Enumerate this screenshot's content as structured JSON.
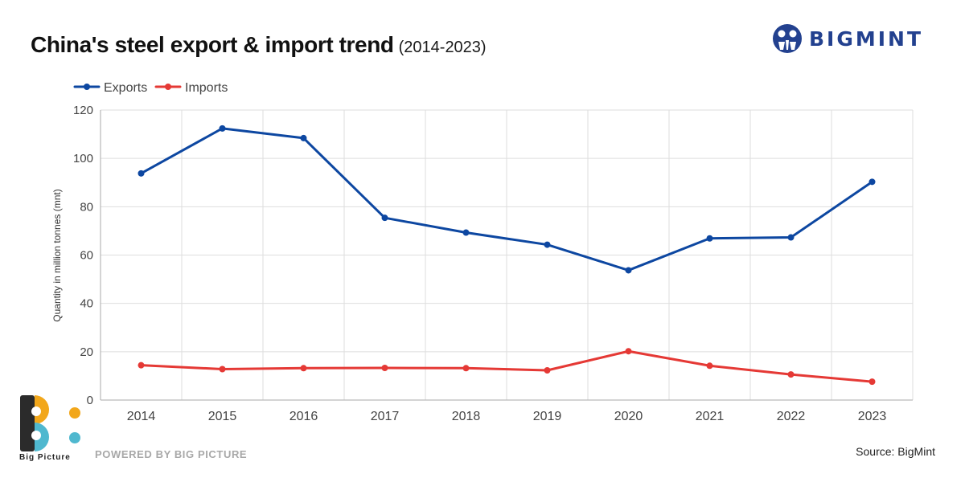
{
  "header": {
    "title": "China's steel export & import trend",
    "subtitle": "(2014-2023)"
  },
  "brand": {
    "name": "BIGMINT",
    "icon": "bigmint-logo-icon",
    "color": "#23418f"
  },
  "footer": {
    "powered_by": "POWERED BY BIG PICTURE",
    "source": "Source: BigMint",
    "logo_text": "Big Picture",
    "logo_icon": "big-picture-logo-icon"
  },
  "chart_data": {
    "type": "line",
    "title": "China's steel export & import trend",
    "subtitle": "(2014-2023)",
    "xlabel": "",
    "ylabel": "Quantity in million tonnes (mnt)",
    "categories": [
      "2014",
      "2015",
      "2016",
      "2017",
      "2018",
      "2019",
      "2020",
      "2021",
      "2022",
      "2023"
    ],
    "ylim": [
      0,
      120
    ],
    "yticks": [
      "0",
      "20",
      "40",
      "60",
      "80",
      "100",
      "120"
    ],
    "grid": true,
    "legend_position": "top-left",
    "series": [
      {
        "name": "Exports",
        "color": "#0d47a1",
        "values": [
          93.8,
          112.4,
          108.4,
          75.4,
          69.3,
          64.3,
          53.7,
          66.9,
          67.3,
          90.3
        ]
      },
      {
        "name": "Imports",
        "color": "#e53935",
        "values": [
          14.4,
          12.8,
          13.2,
          13.3,
          13.2,
          12.3,
          20.2,
          14.2,
          10.6,
          7.6
        ]
      }
    ]
  }
}
